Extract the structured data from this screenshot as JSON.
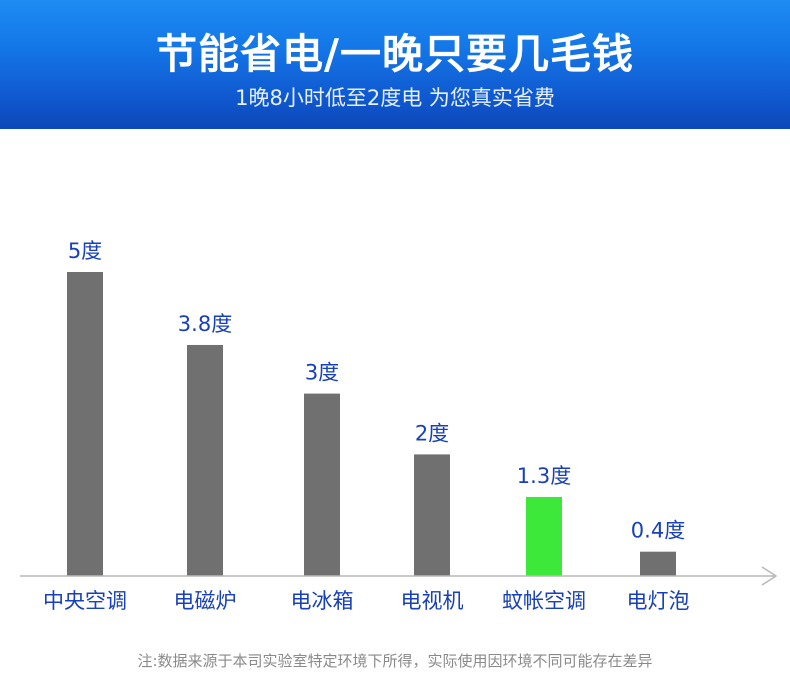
{
  "header": {
    "title": "节能省电/一晚只要几毛钱",
    "subtitle": "1晚8小时低至2度电 为您真实省费"
  },
  "chart_data": {
    "type": "bar",
    "categories": [
      "中央空调",
      "电磁炉",
      "电冰箱",
      "电视机",
      "蚊帐空调",
      "电灯泡"
    ],
    "values": [
      5,
      3.8,
      3,
      2,
      1.3,
      0.4
    ],
    "value_labels": [
      "5度",
      "3.8度",
      "3度",
      "2度",
      "1.3度",
      "0.4度"
    ],
    "ylim": [
      0,
      5
    ],
    "highlight_index": 4,
    "colors": {
      "bar": "#707070",
      "highlight": "#3ee83a",
      "label": "#1840b8",
      "axis": "#b8b8b8"
    }
  },
  "footnote": "注:数据来源于本司实验室特定环境下所得，实际使用因环境不同可能存在差异"
}
